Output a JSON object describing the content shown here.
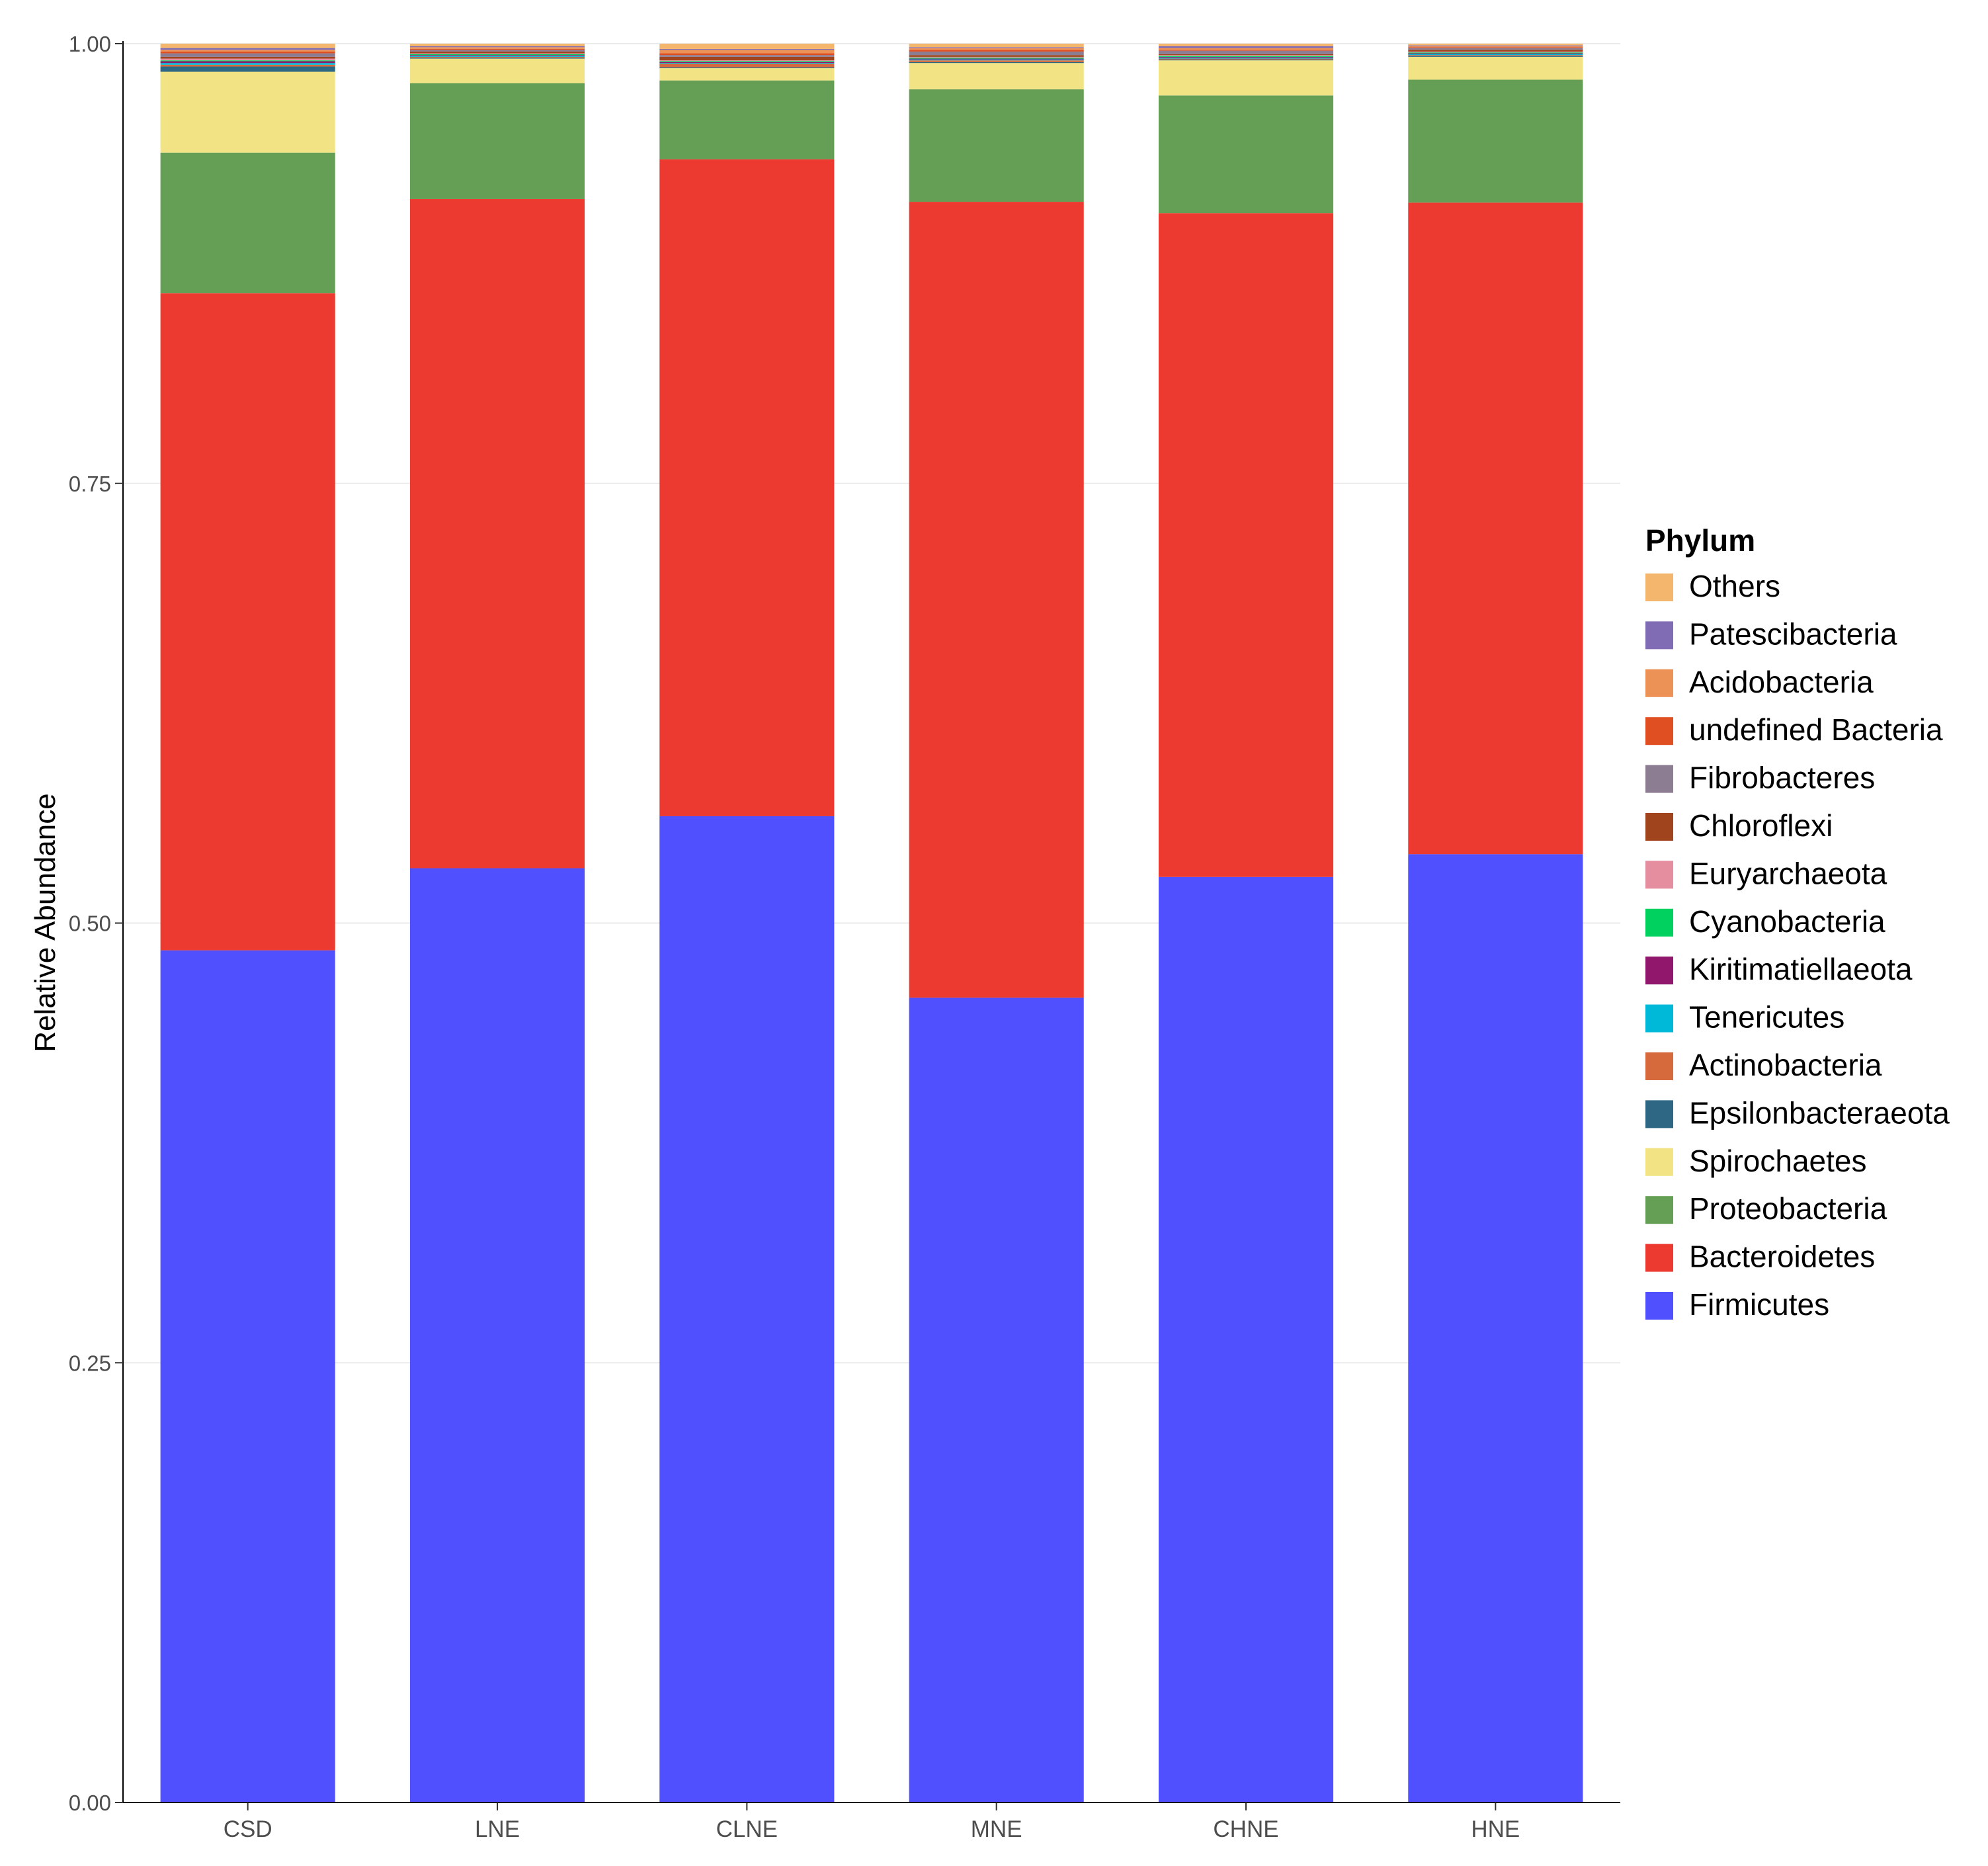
{
  "chart_data": {
    "type": "bar",
    "stacked": true,
    "title": "",
    "xlabel": "",
    "ylabel": "Relative Abundance",
    "ylim": [
      0,
      1
    ],
    "yticks": [
      "0.00",
      "0.25",
      "0.50",
      "0.75",
      "1.00"
    ],
    "grid": true,
    "legend_position": "right",
    "legend_title": "Phylum",
    "categories": [
      "CSD",
      "LNE",
      "CLNE",
      "MNE",
      "CHNE",
      "HNE"
    ],
    "series": [
      {
        "name": "Firmicutes",
        "color": "#5050FF",
        "values": [
          0.485,
          0.532,
          0.563,
          0.458,
          0.527,
          0.54
        ]
      },
      {
        "name": "Bacteroidetes",
        "color": "#EC3A30",
        "values": [
          0.374,
          0.381,
          0.375,
          0.453,
          0.378,
          0.371
        ]
      },
      {
        "name": "Proteobacteria",
        "color": "#659F56",
        "values": [
          0.08,
          0.066,
          0.045,
          0.064,
          0.067,
          0.07
        ]
      },
      {
        "name": "Spirochaetes",
        "color": "#F2E485",
        "values": [
          0.046,
          0.014,
          0.007,
          0.015,
          0.02,
          0.013
        ]
      },
      {
        "name": "Epsilonbacteraeota",
        "color": "#2D6784",
        "values": [
          0.003,
          0.0005,
          0.0005,
          0.0005,
          0.0005,
          0.0005
        ]
      },
      {
        "name": "Actinobacteria",
        "color": "#D76A3C",
        "values": [
          0.001,
          0.0005,
          0.002,
          0.001,
          0.0005,
          0.0005
        ]
      },
      {
        "name": "Tenericutes",
        "color": "#00B8D8",
        "values": [
          0.001,
          0.0005,
          0.0005,
          0.0005,
          0.0005,
          0.0005
        ]
      },
      {
        "name": "Kiritimatiellaeota",
        "color": "#90176B",
        "values": [
          0.001,
          0.0005,
          0.0005,
          0.0005,
          0.0005,
          0.0005
        ]
      },
      {
        "name": "Cyanobacteria",
        "color": "#00D15F",
        "values": [
          0.0005,
          0.0005,
          0.0005,
          0.0005,
          0.0005,
          0.0005
        ]
      },
      {
        "name": "Euryarchaeota",
        "color": "#E58E9F",
        "values": [
          0.001,
          0.0005,
          0.0005,
          0.0005,
          0.0005,
          0.0005
        ]
      },
      {
        "name": "Chloroflexi",
        "color": "#A0441E",
        "values": [
          0.001,
          0.001,
          0.002,
          0.001,
          0.0005,
          0.001
        ]
      },
      {
        "name": "Fibrobacteres",
        "color": "#8C7D93",
        "values": [
          0.002,
          0.001,
          0.001,
          0.002,
          0.002,
          0.001
        ]
      },
      {
        "name": "undefined Bacteria",
        "color": "#E04F22",
        "values": [
          0.001,
          0.0005,
          0.001,
          0.001,
          0.0005,
          0.0005
        ]
      },
      {
        "name": "Acidobacteria",
        "color": "#EC9257",
        "values": [
          0.001,
          0.001,
          0.002,
          0.001,
          0.001,
          0.0005
        ]
      },
      {
        "name": "Patescibacteria",
        "color": "#806CB4",
        "values": [
          0.001,
          0.0005,
          0.0005,
          0.0005,
          0.001,
          0.0005
        ]
      },
      {
        "name": "Others",
        "color": "#F4B56D",
        "values": [
          0.0025,
          0.0015,
          0.003,
          0.002,
          0.0015,
          0.001
        ]
      }
    ]
  }
}
